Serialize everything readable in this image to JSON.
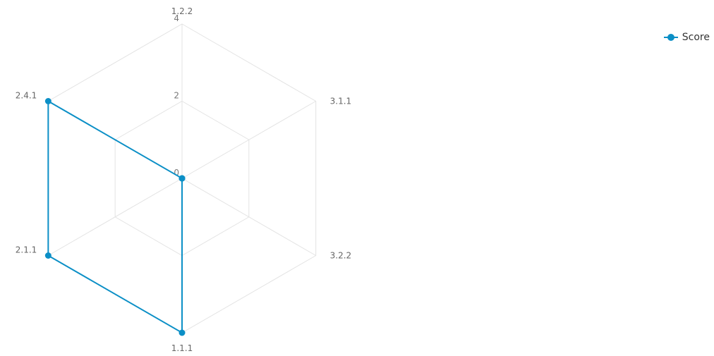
{
  "chart_data": {
    "type": "radar",
    "axes": [
      "1.2.2",
      "3.1.1",
      "3.2.2",
      "1.1.1",
      "2.1.1",
      "2.4.1"
    ],
    "series": [
      {
        "name": "Score",
        "values": [
          0,
          0,
          0,
          4,
          4,
          4
        ],
        "color": "#0b8fc6"
      }
    ],
    "range": [
      0,
      4
    ],
    "ticks": [
      "0",
      "2",
      "4"
    ],
    "grid": true,
    "legend": "top-right"
  }
}
